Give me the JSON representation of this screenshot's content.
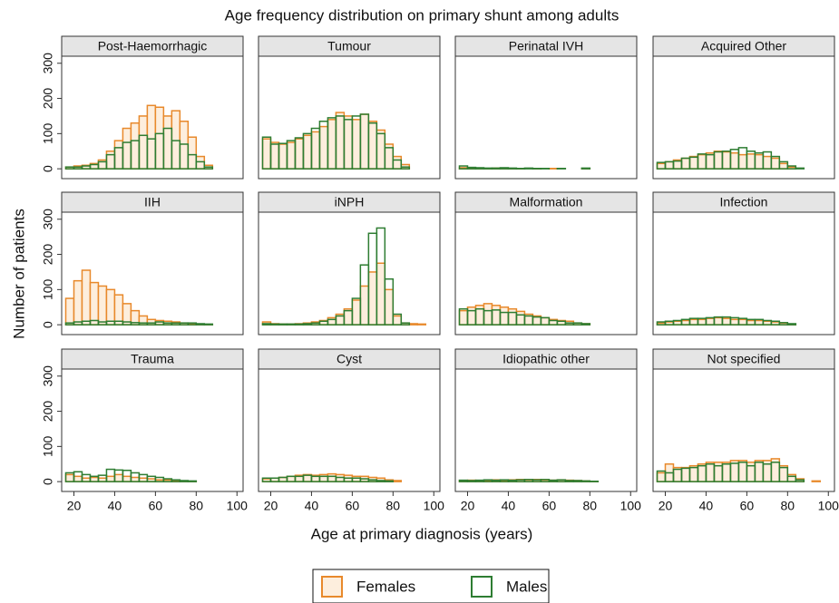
{
  "chart_data": {
    "type": "histogram",
    "title": "Age frequency distribution on primary shunt among adults",
    "xlabel": "Age at primary diagnosis (years)",
    "ylabel": "Number of patients",
    "bins": [
      16,
      20,
      24,
      28,
      32,
      36,
      40,
      44,
      48,
      52,
      56,
      60,
      64,
      68,
      72,
      76,
      80,
      84,
      88,
      92,
      96,
      100
    ],
    "xlim": [
      14,
      103
    ],
    "xticks": [
      20,
      40,
      60,
      80,
      100
    ],
    "ylim": [
      -28,
      320
    ],
    "yticks": [
      0,
      100,
      200,
      300
    ],
    "series": [
      {
        "name": "Females",
        "color": "#e8892b",
        "fill": "#fdeedd"
      },
      {
        "name": "Males",
        "color": "#2e7d32",
        "fill": "none"
      }
    ],
    "panels": [
      {
        "title": "Post-Haemorrhagic",
        "values": [
          [
            5,
            8,
            10,
            15,
            25,
            50,
            80,
            115,
            130,
            150,
            180,
            175,
            150,
            165,
            135,
            90,
            35,
            10,
            0,
            0,
            0
          ],
          [
            5,
            5,
            8,
            12,
            20,
            40,
            60,
            75,
            80,
            95,
            85,
            100,
            115,
            80,
            70,
            40,
            20,
            5,
            0,
            0,
            0
          ]
        ]
      },
      {
        "title": "Tumour",
        "values": [
          [
            85,
            75,
            70,
            75,
            85,
            95,
            105,
            120,
            140,
            160,
            150,
            140,
            155,
            135,
            110,
            70,
            35,
            12,
            0,
            0,
            0
          ],
          [
            90,
            70,
            72,
            80,
            88,
            100,
            115,
            135,
            145,
            150,
            140,
            150,
            155,
            130,
            100,
            60,
            25,
            5,
            0,
            0,
            0
          ]
        ]
      },
      {
        "title": "Perinatal IVH",
        "values": [
          [
            3,
            2,
            1,
            1,
            2,
            1,
            1,
            1,
            0,
            1,
            0,
            1,
            0,
            0,
            0,
            1,
            0,
            0,
            0,
            0,
            0
          ],
          [
            8,
            4,
            3,
            2,
            2,
            3,
            2,
            1,
            2,
            1,
            1,
            0,
            1,
            0,
            0,
            2,
            0,
            0,
            0,
            0,
            0
          ]
        ]
      },
      {
        "title": "Acquired Other",
        "values": [
          [
            15,
            20,
            25,
            30,
            35,
            40,
            45,
            50,
            48,
            45,
            40,
            42,
            40,
            35,
            30,
            15,
            5,
            0,
            0,
            0,
            0
          ],
          [
            18,
            20,
            22,
            30,
            33,
            42,
            40,
            48,
            50,
            55,
            60,
            50,
            45,
            48,
            35,
            20,
            8,
            2,
            0,
            0,
            0
          ]
        ]
      },
      {
        "title": "IIH",
        "values": [
          [
            75,
            125,
            155,
            120,
            110,
            100,
            85,
            60,
            40,
            25,
            15,
            12,
            10,
            8,
            5,
            3,
            2,
            1,
            0,
            0,
            0
          ],
          [
            5,
            8,
            10,
            12,
            8,
            10,
            10,
            8,
            6,
            5,
            5,
            8,
            5,
            5,
            5,
            5,
            3,
            2,
            0,
            0,
            0
          ]
        ]
      },
      {
        "title": "iNPH",
        "values": [
          [
            8,
            3,
            2,
            2,
            3,
            5,
            8,
            12,
            20,
            30,
            45,
            70,
            110,
            150,
            175,
            100,
            25,
            5,
            3,
            2,
            0
          ],
          [
            3,
            2,
            2,
            2,
            2,
            3,
            5,
            10,
            15,
            25,
            40,
            75,
            170,
            260,
            275,
            130,
            30,
            5,
            0,
            0,
            0
          ]
        ]
      },
      {
        "title": "Malformation",
        "values": [
          [
            40,
            50,
            55,
            60,
            55,
            50,
            45,
            38,
            30,
            25,
            20,
            15,
            12,
            10,
            5,
            3,
            0,
            0,
            0,
            0,
            0
          ],
          [
            45,
            40,
            45,
            40,
            42,
            35,
            35,
            28,
            25,
            22,
            20,
            12,
            10,
            5,
            5,
            3,
            0,
            0,
            0,
            0,
            0
          ]
        ]
      },
      {
        "title": "Infection",
        "values": [
          [
            5,
            8,
            10,
            12,
            15,
            15,
            18,
            20,
            18,
            15,
            15,
            12,
            12,
            10,
            8,
            5,
            2,
            0,
            0,
            0,
            0
          ],
          [
            8,
            10,
            12,
            15,
            18,
            18,
            20,
            22,
            22,
            20,
            18,
            15,
            15,
            12,
            10,
            6,
            3,
            0,
            0,
            0,
            0
          ]
        ]
      },
      {
        "title": "Trauma",
        "values": [
          [
            20,
            15,
            10,
            12,
            10,
            15,
            20,
            15,
            12,
            10,
            8,
            5,
            5,
            3,
            2,
            1,
            0,
            0,
            0,
            0,
            0
          ],
          [
            25,
            28,
            20,
            15,
            18,
            35,
            33,
            32,
            25,
            20,
            15,
            12,
            8,
            5,
            3,
            2,
            0,
            0,
            0,
            0,
            0
          ]
        ]
      },
      {
        "title": "Cyst",
        "values": [
          [
            8,
            10,
            12,
            15,
            18,
            20,
            18,
            20,
            22,
            20,
            18,
            15,
            15,
            12,
            10,
            5,
            3,
            0,
            0,
            0,
            0
          ],
          [
            10,
            10,
            12,
            15,
            15,
            18,
            15,
            15,
            15,
            12,
            10,
            10,
            8,
            5,
            3,
            2,
            0,
            0,
            0,
            0,
            0
          ]
        ]
      },
      {
        "title": "Idiopathic other",
        "values": [
          [
            3,
            4,
            3,
            3,
            5,
            4,
            5,
            6,
            5,
            6,
            5,
            4,
            5,
            4,
            3,
            2,
            1,
            0,
            0,
            0,
            0
          ],
          [
            4,
            3,
            4,
            5,
            4,
            5,
            4,
            5,
            6,
            5,
            6,
            4,
            5,
            3,
            3,
            2,
            1,
            0,
            0,
            0,
            0
          ]
        ]
      },
      {
        "title": "Not specified",
        "values": [
          [
            25,
            50,
            40,
            40,
            45,
            50,
            55,
            55,
            55,
            60,
            60,
            55,
            60,
            60,
            65,
            45,
            20,
            8,
            0,
            2,
            0
          ],
          [
            30,
            25,
            35,
            38,
            40,
            45,
            50,
            45,
            50,
            52,
            55,
            45,
            55,
            50,
            55,
            40,
            15,
            5,
            0,
            0,
            0
          ]
        ]
      }
    ]
  }
}
